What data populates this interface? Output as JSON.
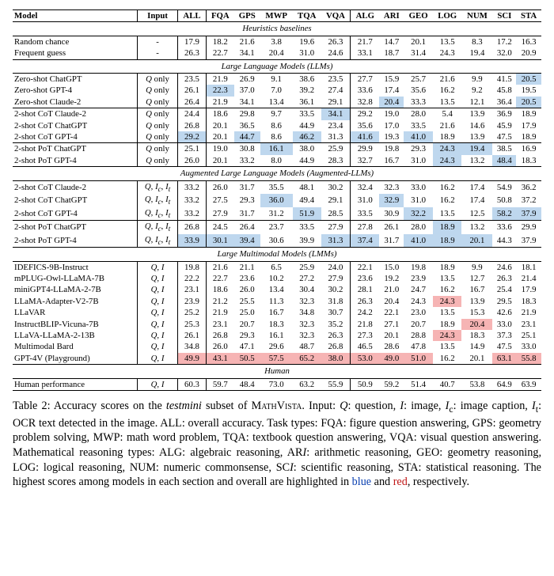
{
  "highlight_colors": {
    "blue": "#bed7ee",
    "red": "#f6b4b4"
  },
  "columns": [
    "Model",
    "Input",
    "ALL",
    "FQA",
    "GPS",
    "MWP",
    "TQA",
    "VQA",
    "ALG",
    "ARI",
    "GEO",
    "LOG",
    "NUM",
    "SCI",
    "STA"
  ],
  "groups": [
    {
      "title": "Heuristics baselines",
      "rows": [
        {
          "model": "Random chance",
          "input": "-",
          "vals": [
            "17.9",
            "18.2",
            "21.6",
            "3.8",
            "19.6",
            "26.3",
            "21.7",
            "14.7",
            "20.1",
            "13.5",
            "8.3",
            "17.2",
            "16.3"
          ]
        },
        {
          "model": "Frequent guess",
          "input": "-",
          "vals": [
            "26.3",
            "22.7",
            "34.1",
            "20.4",
            "31.0",
            "24.6",
            "33.1",
            "18.7",
            "31.4",
            "24.3",
            "19.4",
            "32.0",
            "20.9"
          ]
        }
      ]
    },
    {
      "title": "Large Language Models (LLMs)",
      "rows": [
        {
          "model": "Zero-shot ChatGPT",
          "input": "Q only",
          "vals": [
            "23.5",
            "21.9",
            "26.9",
            "9.1",
            "38.6",
            "23.5",
            "27.7",
            "15.9",
            "25.7",
            "21.6",
            "9.9",
            "41.5",
            {
              "v": "20.5",
              "c": "blue"
            }
          ]
        },
        {
          "model": "Zero-shot GPT-4",
          "input": "Q only",
          "vals": [
            "26.1",
            {
              "v": "22.3",
              "c": "blue"
            },
            "37.0",
            "7.0",
            "39.2",
            "27.4",
            "33.6",
            "17.4",
            "35.6",
            "16.2",
            "9.2",
            "45.8",
            "19.5"
          ]
        },
        {
          "model": "Zero-shot Claude-2",
          "input": "Q only",
          "vals": [
            "26.4",
            "21.9",
            "34.1",
            "13.4",
            "36.1",
            "29.1",
            "32.8",
            {
              "v": "20.4",
              "c": "blue"
            },
            "33.3",
            "13.5",
            "12.1",
            "36.4",
            {
              "v": "20.5",
              "c": "blue"
            }
          ]
        }
      ]
    },
    {
      "rows": [
        {
          "model": "2-shot CoT Claude-2",
          "input": "Q only",
          "vals": [
            "24.4",
            "18.6",
            "29.8",
            "9.7",
            "33.5",
            {
              "v": "34.1",
              "c": "blue"
            },
            "29.2",
            "19.0",
            "28.0",
            "5.4",
            "13.9",
            "36.9",
            "18.9"
          ]
        },
        {
          "model": "2-shot CoT ChatGPT",
          "input": "Q only",
          "vals": [
            "26.8",
            "20.1",
            "36.5",
            "8.6",
            "44.9",
            "23.4",
            "35.6",
            "17.0",
            "33.5",
            "21.6",
            "14.6",
            "45.9",
            "17.9"
          ]
        },
        {
          "model": "2-shot CoT GPT-4",
          "input": "Q only",
          "vals": [
            {
              "v": "29.2",
              "c": "blue"
            },
            "20.1",
            {
              "v": "44.7",
              "c": "blue"
            },
            "8.6",
            {
              "v": "46.2",
              "c": "blue"
            },
            "31.3",
            {
              "v": "41.6",
              "c": "blue"
            },
            "19.3",
            {
              "v": "41.0",
              "c": "blue"
            },
            "18.9",
            "13.9",
            "47.5",
            "18.9"
          ]
        }
      ]
    },
    {
      "rows": [
        {
          "model": "2-shot PoT ChatGPT",
          "input": "Q only",
          "vals": [
            "25.1",
            "19.0",
            "30.8",
            {
              "v": "16.1",
              "c": "blue"
            },
            "38.0",
            "25.9",
            "29.9",
            "19.8",
            "29.3",
            {
              "v": "24.3",
              "c": "blue"
            },
            {
              "v": "19.4",
              "c": "blue"
            },
            "38.5",
            "16.9"
          ]
        },
        {
          "model": "2-shot PoT GPT-4",
          "input": "Q only",
          "vals": [
            "26.0",
            "20.1",
            "33.2",
            "8.0",
            "44.9",
            "28.3",
            "32.7",
            "16.7",
            "31.0",
            {
              "v": "24.3",
              "c": "blue"
            },
            "13.2",
            {
              "v": "48.4",
              "c": "blue"
            },
            "18.3"
          ]
        }
      ]
    },
    {
      "title": "Augmented Large Language Models (Augmented-LLMs)",
      "rows": [
        {
          "model": "2-shot CoT Claude-2",
          "input": "Q, I_c, I_t",
          "vals": [
            "33.2",
            "26.0",
            "31.7",
            "35.5",
            "48.1",
            "30.2",
            "32.4",
            "32.3",
            "33.0",
            "16.2",
            "17.4",
            "54.9",
            "36.2"
          ]
        },
        {
          "model": "2-shot CoT ChatGPT",
          "input": "Q, I_c, I_t",
          "vals": [
            "33.2",
            "27.5",
            "29.3",
            {
              "v": "36.0",
              "c": "blue"
            },
            "49.4",
            "29.1",
            "31.0",
            {
              "v": "32.9",
              "c": "blue"
            },
            "31.0",
            "16.2",
            "17.4",
            "50.8",
            "37.2"
          ]
        },
        {
          "model": "2-shot CoT GPT-4",
          "input": "Q, I_c, I_t",
          "vals": [
            "33.2",
            "27.9",
            "31.7",
            "31.2",
            {
              "v": "51.9",
              "c": "blue"
            },
            "28.5",
            "33.5",
            "30.9",
            {
              "v": "32.2",
              "c": "blue"
            },
            "13.5",
            "12.5",
            {
              "v": "58.2",
              "c": "blue"
            },
            {
              "v": "37.9",
              "c": "blue"
            }
          ]
        }
      ]
    },
    {
      "rows": [
        {
          "model": "2-shot PoT ChatGPT",
          "input": "Q, I_c, I_t",
          "vals": [
            "26.8",
            "24.5",
            "26.4",
            "23.7",
            "33.5",
            "27.9",
            "27.8",
            "26.1",
            "28.0",
            {
              "v": "18.9",
              "c": "blue"
            },
            "13.2",
            "33.6",
            "29.9"
          ]
        },
        {
          "model": "2-shot PoT GPT-4",
          "input": "Q, I_c, I_t",
          "vals": [
            {
              "v": "33.9",
              "c": "blue"
            },
            {
              "v": "30.1",
              "c": "blue"
            },
            {
              "v": "39.4",
              "c": "blue"
            },
            "30.6",
            "39.9",
            {
              "v": "31.3",
              "c": "blue"
            },
            {
              "v": "37.4",
              "c": "blue"
            },
            "31.7",
            {
              "v": "41.0",
              "c": "blue"
            },
            {
              "v": "18.9",
              "c": "blue"
            },
            {
              "v": "20.1",
              "c": "blue"
            },
            "44.3",
            "37.9"
          ]
        }
      ]
    },
    {
      "title": "Large Multimodal Models (LMMs)",
      "rows": [
        {
          "model": "IDEFICS-9B-Instruct",
          "input": "Q, I",
          "vals": [
            "19.8",
            "21.6",
            "21.1",
            "6.5",
            "25.9",
            "24.0",
            "22.1",
            "15.0",
            "19.8",
            "18.9",
            "9.9",
            "24.6",
            "18.1"
          ]
        },
        {
          "model": "mPLUG-Owl-LLaMA-7B",
          "input": "Q, I",
          "vals": [
            "22.2",
            "22.7",
            "23.6",
            "10.2",
            "27.2",
            "27.9",
            "23.6",
            "19.2",
            "23.9",
            "13.5",
            "12.7",
            "26.3",
            "21.4"
          ]
        },
        {
          "model": "miniGPT4-LLaMA-2-7B",
          "input": "Q, I",
          "vals": [
            "23.1",
            "18.6",
            "26.0",
            "13.4",
            "30.4",
            "30.2",
            "28.1",
            "21.0",
            "24.7",
            "16.2",
            "16.7",
            "25.4",
            "17.9"
          ]
        },
        {
          "model": "LLaMA-Adapter-V2-7B",
          "input": "Q, I",
          "vals": [
            "23.9",
            "21.2",
            "25.5",
            "11.3",
            "32.3",
            "31.8",
            "26.3",
            "20.4",
            "24.3",
            {
              "v": "24.3",
              "c": "red"
            },
            "13.9",
            "29.5",
            "18.3"
          ]
        },
        {
          "model": "LLaVAR",
          "input": "Q, I",
          "vals": [
            "25.2",
            "21.9",
            "25.0",
            "16.7",
            "34.8",
            "30.7",
            "24.2",
            "22.1",
            "23.0",
            "13.5",
            "15.3",
            "42.6",
            "21.9"
          ]
        },
        {
          "model": "InstructBLIP-Vicuna-7B",
          "input": "Q, I",
          "vals": [
            "25.3",
            "23.1",
            "20.7",
            "18.3",
            "32.3",
            "35.2",
            "21.8",
            "27.1",
            "20.7",
            "18.9",
            {
              "v": "20.4",
              "c": "red"
            },
            "33.0",
            "23.1"
          ]
        },
        {
          "model": "LLaVA-LLaMA-2-13B",
          "input": "Q, I",
          "vals": [
            "26.1",
            "26.8",
            "29.3",
            "16.1",
            "32.3",
            "26.3",
            "27.3",
            "20.1",
            "28.8",
            {
              "v": "24.3",
              "c": "red"
            },
            "18.3",
            "37.3",
            "25.1"
          ]
        },
        {
          "model": "Multimodal Bard",
          "input": "Q, I",
          "vals": [
            "34.8",
            "26.0",
            "47.1",
            "29.6",
            "48.7",
            "26.8",
            "46.5",
            "28.6",
            "47.8",
            "13.5",
            "14.9",
            "47.5",
            "33.0"
          ]
        },
        {
          "model": "GPT-4V (Playground)",
          "input": "Q, I",
          "vals": [
            {
              "v": "49.9",
              "c": "red"
            },
            {
              "v": "43.1",
              "c": "red"
            },
            {
              "v": "50.5",
              "c": "red"
            },
            {
              "v": "57.5",
              "c": "red"
            },
            {
              "v": "65.2",
              "c": "red"
            },
            {
              "v": "38.0",
              "c": "red"
            },
            {
              "v": "53.0",
              "c": "red"
            },
            {
              "v": "49.0",
              "c": "red"
            },
            {
              "v": "51.0",
              "c": "red"
            },
            "16.2",
            "20.1",
            {
              "v": "63.1",
              "c": "red"
            },
            {
              "v": "55.8",
              "c": "red"
            }
          ]
        }
      ]
    },
    {
      "title": "Human",
      "rows": [
        {
          "model": "Human performance",
          "input": "Q, I",
          "vals": [
            "60.3",
            "59.7",
            "48.4",
            "73.0",
            "63.2",
            "55.9",
            "50.9",
            "59.2",
            "51.4",
            "40.7",
            "53.8",
            "64.9",
            "63.9"
          ]
        }
      ]
    }
  ],
  "caption": {
    "label": "Table 2:",
    "body_before_mv": "Accuracy scores on the testmini subset of ",
    "mathvista": "MathVista",
    "body_after_mv": ". Input: Q: question, I: image, I_c: image caption, I_t: OCR text detected in the image. ALL: overall accuracy. Task types: FQA: figure question answering, GPS: geometry problem solving, MWP: math word problem, TQA: textbook question answering, VQA: visual question answering. Mathematical reasoning types: ALG: algebraic reasoning, ARI: arithmetic reasoning, GEO: geometry reasoning, LOG: logical reasoning, NUM: numeric commonsense, SCI: scientific reasoning, STA: statistical reasoning. The highest scores among models in each section and overall are highlighted in ",
    "blue_word": "blue",
    "and_word": " and ",
    "red_word": "red",
    "tail": ", respectively."
  }
}
